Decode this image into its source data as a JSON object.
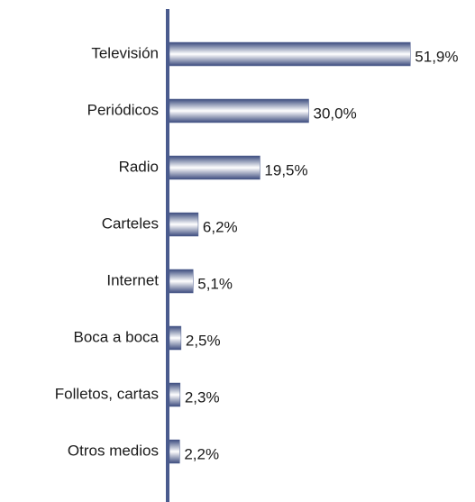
{
  "chart_data": {
    "type": "bar",
    "orientation": "horizontal",
    "categories": [
      "Televisión",
      "Periódicos",
      "Radio",
      "Carteles",
      "Internet",
      "Boca a boca",
      "Folletos, cartas",
      "Otros medios"
    ],
    "values": [
      51.9,
      30.0,
      19.5,
      6.2,
      5.1,
      2.5,
      2.3,
      2.2
    ],
    "value_labels": [
      "51,9%",
      "30,0%",
      "19,5%",
      "6,2%",
      "5,1%",
      "2,5%",
      "2,3%",
      "2,2%"
    ],
    "color": "#4a5b8e"
  }
}
